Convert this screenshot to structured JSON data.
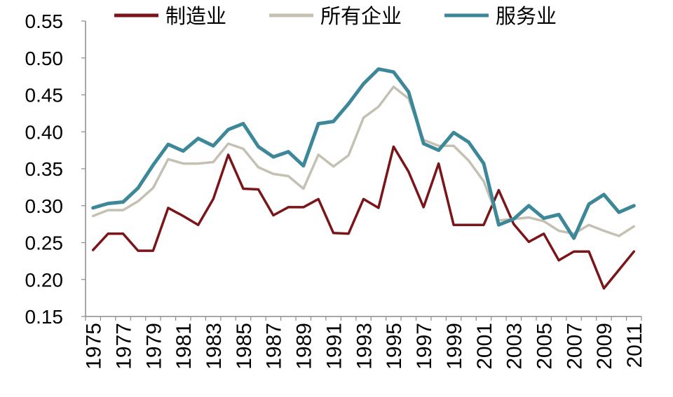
{
  "chart_data": {
    "type": "line",
    "legend_position": "top",
    "grid": false,
    "ylim": [
      0.15,
      0.55
    ],
    "y_tick_labels": [
      "0.15",
      "0.20",
      "0.25",
      "0.30",
      "0.35",
      "0.40",
      "0.45",
      "0.50",
      "0.55"
    ],
    "x": [
      1975,
      1976,
      1977,
      1978,
      1979,
      1980,
      1981,
      1982,
      1983,
      1984,
      1985,
      1986,
      1987,
      1988,
      1989,
      1990,
      1991,
      1992,
      1993,
      1994,
      1995,
      1996,
      1997,
      1998,
      1999,
      2000,
      2001,
      2002,
      2003,
      2004,
      2005,
      2006,
      2007,
      2008,
      2009,
      2010,
      2011
    ],
    "x_tick_labels": [
      "1975",
      "1977",
      "1979",
      "1981",
      "1983",
      "1985",
      "1987",
      "1989",
      "1991",
      "1993",
      "1995",
      "1997",
      "1999",
      "2001",
      "2003",
      "2005",
      "2007",
      "2009",
      "2011"
    ],
    "series": [
      {
        "name": "制造业",
        "color": "#7a1519",
        "values": [
          0.24,
          0.262,
          0.262,
          0.239,
          0.239,
          0.297,
          0.286,
          0.274,
          0.309,
          0.369,
          0.323,
          0.322,
          0.287,
          0.298,
          0.298,
          0.309,
          0.263,
          0.262,
          0.309,
          0.297,
          0.38,
          0.346,
          0.298,
          0.357,
          0.274,
          0.274,
          0.274,
          0.321,
          0.275,
          0.251,
          0.262,
          0.226,
          0.238,
          0.238,
          0.188,
          0.213,
          0.238
        ]
      },
      {
        "name": "所有企业",
        "color": "#c4c1b3",
        "values": [
          0.286,
          0.294,
          0.294,
          0.306,
          0.324,
          0.363,
          0.357,
          0.357,
          0.359,
          0.384,
          0.377,
          0.352,
          0.343,
          0.34,
          0.323,
          0.369,
          0.353,
          0.368,
          0.419,
          0.434,
          0.461,
          0.445,
          0.389,
          0.381,
          0.381,
          0.361,
          0.333,
          0.28,
          0.282,
          0.284,
          0.279,
          0.266,
          0.262,
          0.274,
          0.266,
          0.259,
          0.272
        ]
      },
      {
        "name": "服务业",
        "color": "#3d8898",
        "values": [
          0.297,
          0.303,
          0.305,
          0.324,
          0.355,
          0.383,
          0.374,
          0.391,
          0.381,
          0.403,
          0.411,
          0.38,
          0.366,
          0.373,
          0.354,
          0.411,
          0.414,
          0.438,
          0.465,
          0.485,
          0.481,
          0.454,
          0.384,
          0.375,
          0.399,
          0.386,
          0.357,
          0.274,
          0.282,
          0.3,
          0.283,
          0.288,
          0.256,
          0.302,
          0.315,
          0.291,
          0.3
        ]
      }
    ]
  }
}
